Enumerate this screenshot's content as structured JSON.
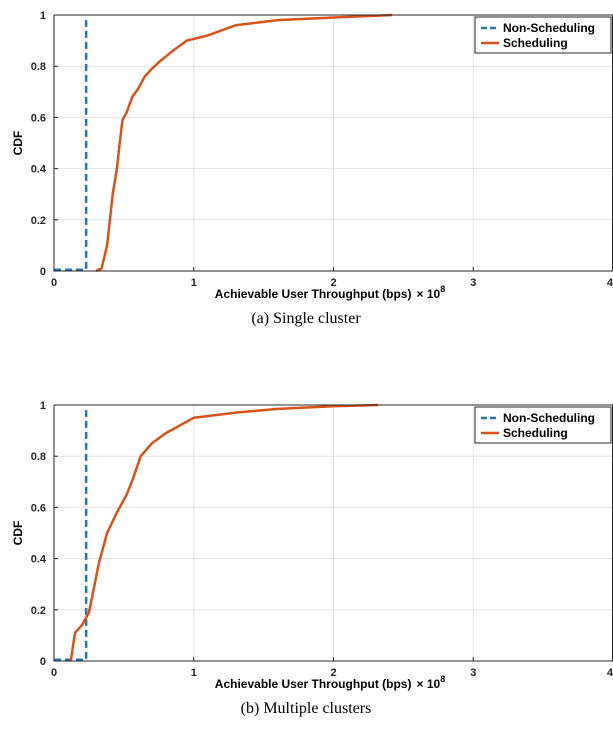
{
  "chart_data": [
    {
      "type": "line",
      "caption": "(a) Single cluster",
      "xlabel": "Achievable User Throughput (bps)",
      "xlabel_multiplier": "× 10",
      "xlabel_exponent": "8",
      "ylabel": "CDF",
      "xlim": [
        0,
        4
      ],
      "ylim": [
        0,
        1
      ],
      "xticks": [
        "0",
        "1",
        "2",
        "3",
        "4"
      ],
      "yticks": [
        "0",
        "0.2",
        "0.4",
        "0.6",
        "0.8",
        "1"
      ],
      "grid": true,
      "legend_position": "top-right",
      "series": [
        {
          "name": "Non-Scheduling",
          "color": "#1f77b4",
          "style": "dashed",
          "points": [
            [
              0,
              0.005
            ],
            [
              0.23,
              0.005
            ],
            [
              0.23,
              0.98
            ]
          ]
        },
        {
          "name": "Scheduling",
          "color": "#d95319",
          "style": "solid",
          "points": [
            [
              0.3,
              0.0
            ],
            [
              0.34,
              0.01
            ],
            [
              0.38,
              0.1
            ],
            [
              0.4,
              0.2
            ],
            [
              0.42,
              0.3
            ],
            [
              0.45,
              0.4
            ],
            [
              0.47,
              0.5
            ],
            [
              0.49,
              0.59
            ],
            [
              0.52,
              0.62
            ],
            [
              0.56,
              0.68
            ],
            [
              0.6,
              0.71
            ],
            [
              0.65,
              0.76
            ],
            [
              0.7,
              0.79
            ],
            [
              0.76,
              0.82
            ],
            [
              0.85,
              0.86
            ],
            [
              0.95,
              0.9
            ],
            [
              1.1,
              0.92
            ],
            [
              1.3,
              0.96
            ],
            [
              1.6,
              0.98
            ],
            [
              2.0,
              0.99
            ],
            [
              2.42,
              1.0
            ]
          ]
        }
      ]
    },
    {
      "type": "line",
      "caption": "(b) Multiple clusters",
      "xlabel": "Achievable User Throughput (bps)",
      "xlabel_multiplier": "× 10",
      "xlabel_exponent": "8",
      "ylabel": "CDF",
      "xlim": [
        0,
        4
      ],
      "ylim": [
        0,
        1
      ],
      "xticks": [
        "0",
        "1",
        "2",
        "3",
        "4"
      ],
      "yticks": [
        "0",
        "0.2",
        "0.4",
        "0.6",
        "0.8",
        "1"
      ],
      "grid": true,
      "legend_position": "top-right",
      "series": [
        {
          "name": "Non-Scheduling",
          "color": "#1f77b4",
          "style": "dashed",
          "points": [
            [
              0,
              0.005
            ],
            [
              0.23,
              0.005
            ],
            [
              0.23,
              0.98
            ]
          ]
        },
        {
          "name": "Scheduling",
          "color": "#d95319",
          "style": "solid",
          "points": [
            [
              0.12,
              0.0
            ],
            [
              0.15,
              0.11
            ],
            [
              0.2,
              0.14
            ],
            [
              0.25,
              0.19
            ],
            [
              0.28,
              0.27
            ],
            [
              0.32,
              0.38
            ],
            [
              0.38,
              0.5
            ],
            [
              0.45,
              0.58
            ],
            [
              0.52,
              0.65
            ],
            [
              0.57,
              0.72
            ],
            [
              0.62,
              0.8
            ],
            [
              0.7,
              0.85
            ],
            [
              0.8,
              0.89
            ],
            [
              0.9,
              0.92
            ],
            [
              1.0,
              0.95
            ],
            [
              1.3,
              0.97
            ],
            [
              1.6,
              0.985
            ],
            [
              2.0,
              0.995
            ],
            [
              2.32,
              1.0
            ]
          ]
        }
      ]
    }
  ]
}
